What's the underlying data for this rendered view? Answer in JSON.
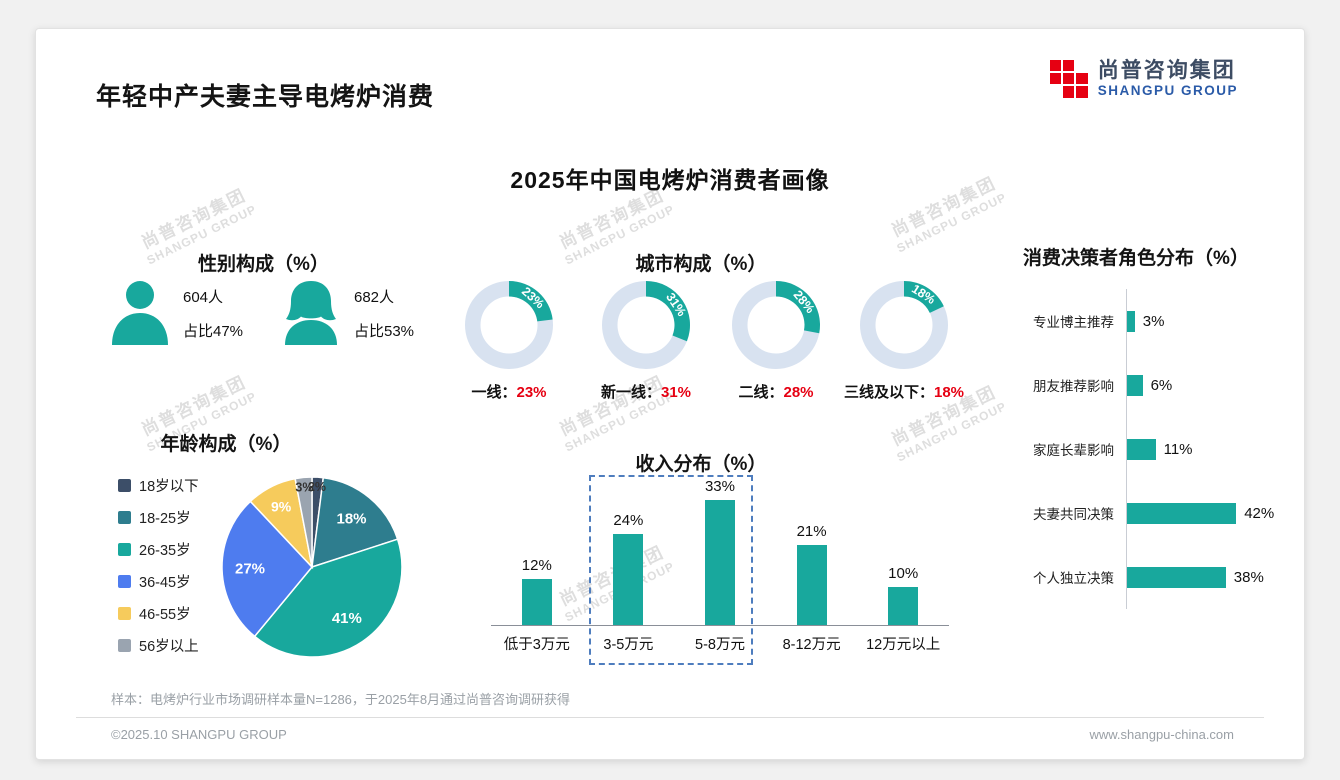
{
  "page": {
    "title": "年轻中产夫妻主导电烤炉消费",
    "main_title": "2025年中国电烤炉消费者画像",
    "footer_note": "样本：电烤炉行业市场调研样本量N=1286，于2025年8月通过尚普咨询调研获得",
    "footer_left": "©2025.10 SHANGPU GROUP",
    "footer_right": "www.shangpu-china.com"
  },
  "logo": {
    "name_cn": "尚普咨询集团",
    "name_en": "SHANGPU GROUP"
  },
  "watermark": {
    "line1": "尚普咨询集团",
    "line2": "SHANGPU GROUP"
  },
  "colors": {
    "teal": "#18A89D",
    "donut_rest": "#D8E2F0",
    "red": "#E60012",
    "axis": "#C9CDD4"
  },
  "chart_data": [
    {
      "id": "gender",
      "type": "pictogram",
      "title": "性别构成（%）",
      "items": [
        {
          "gender": "男",
          "count": "604人",
          "share": "占比47%"
        },
        {
          "gender": "女",
          "count": "682人",
          "share": "占比53%"
        }
      ]
    },
    {
      "id": "city",
      "type": "donut",
      "title": "城市构成（%）",
      "items": [
        {
          "label": "一线",
          "value": 23
        },
        {
          "label": "新一线",
          "value": 31
        },
        {
          "label": "二线",
          "value": 28
        },
        {
          "label": "三线及以下",
          "value": 18
        }
      ]
    },
    {
      "id": "age",
      "type": "pie",
      "title": "年龄构成（%）",
      "categories": [
        "18岁以下",
        "18-25岁",
        "26-35岁",
        "36-45岁",
        "46-55岁",
        "56岁以上"
      ],
      "values": [
        2,
        18,
        41,
        27,
        9,
        3
      ],
      "colors": [
        "#3C4E68",
        "#2E7D8E",
        "#18A89D",
        "#4E7CEF",
        "#F6CB5C",
        "#9AA4B0"
      ],
      "legend_position": "left"
    },
    {
      "id": "income",
      "type": "bar",
      "title": "收入分布（%）",
      "categories": [
        "低于3万元",
        "3-5万元",
        "5-8万元",
        "8-12万元",
        "12万元以上"
      ],
      "values": [
        12,
        24,
        33,
        21,
        10
      ],
      "highlight_categories": [
        "3-5万元",
        "5-8万元"
      ],
      "ylim": [
        0,
        35
      ]
    },
    {
      "id": "decision",
      "type": "horizontal-bar",
      "title": "消费决策者角色分布（%）",
      "categories": [
        "专业博主推荐",
        "朋友推荐影响",
        "家庭长辈影响",
        "夫妻共同决策",
        "个人独立决策"
      ],
      "values": [
        3,
        6,
        11,
        42,
        38
      ],
      "xlim": [
        0,
        45
      ]
    }
  ]
}
